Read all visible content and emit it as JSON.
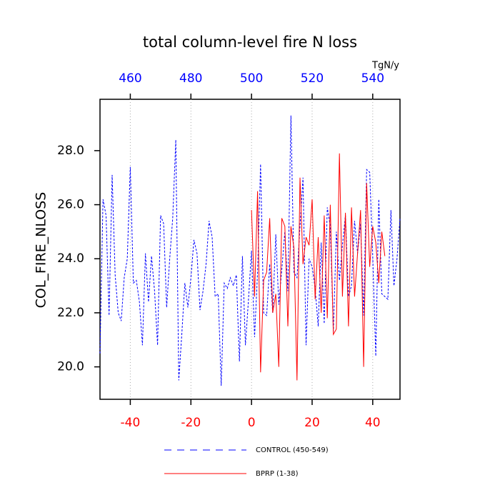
{
  "chart_data": {
    "type": "line",
    "title": "total column-level fire N loss",
    "ylabel": "COL_FIRE_NLOSS",
    "x2label": "TgN/y",
    "xlim": [
      -50,
      49
    ],
    "xticks": [
      -40,
      -20,
      0,
      20,
      40
    ],
    "xtick_color": "#ff0000",
    "x2lim": [
      450,
      549
    ],
    "x2ticks": [
      460,
      480,
      500,
      520,
      540
    ],
    "x2tick_color": "#0000ff",
    "ylim": [
      18.8,
      29.9
    ],
    "yticks": [
      {
        "value": 20,
        "label": "20.0"
      },
      {
        "value": 22,
        "label": "22.0"
      },
      {
        "value": 24,
        "label": "24.0"
      },
      {
        "value": 26,
        "label": "26.0"
      },
      {
        "value": 28,
        "label": "28.0"
      }
    ],
    "grid": true,
    "series": [
      {
        "name": "CONTROL (450-549)",
        "color": "#0000ff",
        "dash": true,
        "x": [
          -50,
          -49,
          -48,
          -47,
          -46,
          -45,
          -44,
          -43,
          -42,
          -41,
          -40,
          -39,
          -38,
          -37,
          -36,
          -35,
          -34,
          -33,
          -32,
          -31,
          -30,
          -29,
          -28,
          -27,
          -26,
          -25,
          -24,
          -23,
          -22,
          -21,
          -20,
          -19,
          -18,
          -17,
          -16,
          -15,
          -14,
          -13,
          -12,
          -11,
          -10,
          -9,
          -8,
          -7,
          -6,
          -5,
          -4,
          -3,
          -2,
          -1,
          0,
          1,
          2,
          3,
          4,
          5,
          6,
          7,
          8,
          9,
          10,
          11,
          12,
          13,
          14,
          15,
          16,
          17,
          18,
          19,
          20,
          21,
          22,
          23,
          24,
          25,
          26,
          27,
          28,
          29,
          30,
          31,
          32,
          33,
          34,
          35,
          36,
          37,
          38,
          39,
          40,
          41,
          42,
          43,
          44,
          45,
          46,
          47,
          48,
          49
        ],
        "values": [
          20.5,
          26.2,
          25.6,
          21.9,
          27.1,
          23.4,
          22.0,
          21.7,
          23.3,
          24.0,
          27.4,
          23.1,
          23.2,
          22.4,
          20.8,
          24.2,
          22.4,
          24.1,
          22.8,
          20.8,
          25.6,
          25.3,
          22.2,
          24.0,
          25.5,
          28.4,
          19.5,
          21.2,
          23.1,
          22.2,
          23.3,
          24.7,
          24.2,
          22.1,
          22.8,
          23.8,
          25.4,
          24.8,
          22.6,
          22.7,
          19.3,
          23.1,
          22.9,
          23.3,
          23.0,
          23.4,
          20.2,
          24.1,
          20.8,
          22.5,
          24.3,
          21.1,
          23.5,
          27.5,
          22.0,
          21.9,
          23.8,
          22.0,
          24.9,
          22.3,
          23.6,
          25.0,
          22.8,
          29.3,
          23.5,
          23.3,
          25.2,
          27.0,
          20.8,
          24.0,
          23.7,
          22.9,
          21.5,
          24.6,
          21.6,
          25.9,
          25.2,
          21.3,
          25.0,
          23.2,
          24.5,
          25.6,
          22.6,
          23.0,
          25.4,
          24.2,
          25.3,
          21.9,
          27.3,
          27.2,
          24.1,
          20.4,
          26.2,
          22.7,
          22.6,
          22.5,
          25.8,
          23.0,
          24.0,
          25.5
        ]
      },
      {
        "name": "BPRP (1-38)",
        "color": "#ff0000",
        "dash": false,
        "x": [
          0,
          1,
          2,
          3,
          4,
          5,
          6,
          7,
          8,
          9,
          10,
          11,
          12,
          13,
          14,
          15,
          16,
          17,
          18,
          19,
          20,
          21,
          22,
          23,
          24,
          25,
          26,
          27,
          28,
          29,
          30,
          31,
          32,
          33,
          34,
          35,
          36,
          37,
          38,
          39,
          40,
          41,
          42,
          43,
          44
        ],
        "values": [
          25.8,
          22.6,
          26.5,
          19.8,
          23.2,
          23.5,
          25.5,
          22.0,
          22.7,
          20.0,
          25.5,
          25.2,
          21.5,
          25.2,
          24.4,
          19.5,
          27.0,
          23.8,
          24.8,
          24.5,
          26.2,
          22.5,
          24.8,
          22.0,
          25.6,
          21.8,
          26.0,
          21.2,
          21.4,
          27.9,
          22.6,
          25.7,
          21.5,
          25.9,
          22.6,
          24.2,
          25.8,
          20.0,
          26.8,
          23.7,
          25.2,
          24.6,
          23.1,
          25.0,
          24.1
        ]
      }
    ]
  }
}
